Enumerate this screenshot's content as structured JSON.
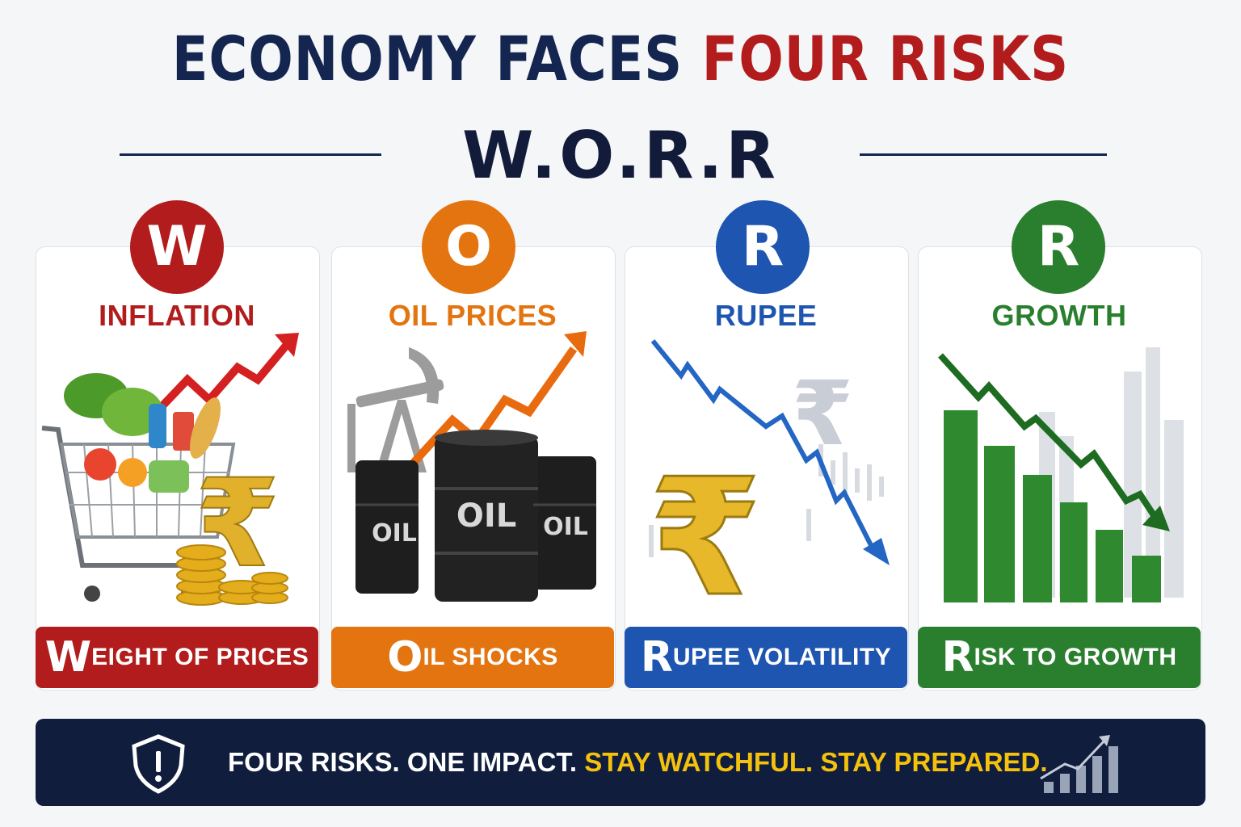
{
  "title": {
    "part1": "ECONOMY FACES",
    "part2": "FOUR RISKS"
  },
  "subtitle": "W.O.R.R",
  "cards": [
    {
      "letter": "W",
      "category": "INFLATION",
      "footer_initial": "W",
      "footer_rest": "EIGHT OF PRICES",
      "color": "#b21c1c",
      "icons": [
        "shopping-cart-icon",
        "rupee-icon",
        "coin-stack-icon",
        "rising-arrow-icon"
      ]
    },
    {
      "letter": "O",
      "category": "OIL PRICES",
      "footer_initial": "O",
      "footer_rest": "IL SHOCKS",
      "color": "#e4740f",
      "icons": [
        "oil-pump-icon",
        "oil-barrel-icon",
        "rising-arrow-icon"
      ],
      "barrel_label": "OIL"
    },
    {
      "letter": "R",
      "category": "RUPEE",
      "footer_initial": "R",
      "footer_rest": "UPEE VOLATILITY",
      "color": "#1d55b0",
      "icons": [
        "rupee-icon",
        "falling-arrow-icon"
      ]
    },
    {
      "letter": "R",
      "category": "GROWTH",
      "footer_initial": "R",
      "footer_rest": "ISK TO GROWTH",
      "color": "#2a7f2e",
      "icons": [
        "bar-chart-icon",
        "falling-arrow-icon"
      ]
    }
  ],
  "banner": {
    "text_white": "FOUR RISKS. ONE IMPACT.",
    "text_yellow": "STAY WATCHFUL. STAY PREPARED.",
    "icons": [
      "shield-alert-icon",
      "growth-chart-icon"
    ]
  }
}
